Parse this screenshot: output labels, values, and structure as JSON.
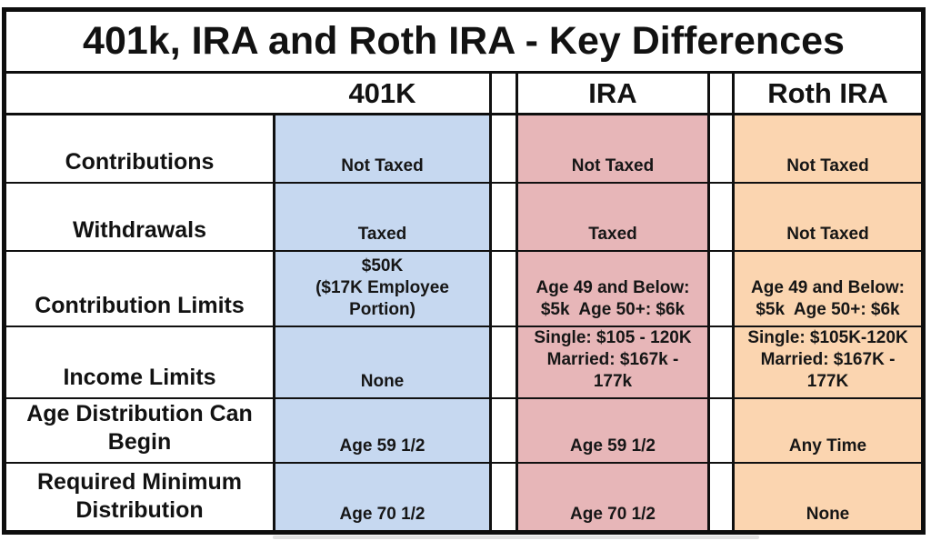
{
  "chart_data": {
    "type": "table",
    "title": "401k, IRA and Roth IRA - Key Differences",
    "columns": [
      "401K",
      "IRA",
      "Roth IRA"
    ],
    "row_labels": [
      "Contributions",
      "Withdrawals",
      "Contribution Limits",
      "Income Limits",
      "Age Distribution Can Begin",
      "Required Minimum Distribution"
    ],
    "rows": [
      {
        "label": "Contributions",
        "values": [
          "Not Taxed",
          "Not Taxed",
          "Not Taxed"
        ]
      },
      {
        "label": "Withdrawals",
        "values": [
          "Taxed",
          "Taxed",
          "Not Taxed"
        ]
      },
      {
        "label": "Contribution Limits",
        "values": [
          "$50K\n($17K Employee\nPortion)",
          "Age 49 and Below:\n$5k  Age 50+: $6k",
          "Age 49 and Below:\n$5k  Age 50+: $6k"
        ]
      },
      {
        "label": "Income Limits",
        "values": [
          "None",
          "Single: $105 - 120K\nMarried: $167k -\n177k",
          "Single: $105K-120K\nMarried: $167K -\n177K"
        ]
      },
      {
        "label": "Age Distribution Can Begin",
        "values": [
          "Age 59 1/2",
          "Age 59 1/2",
          "Any Time"
        ]
      },
      {
        "label": "Required Minimum Distribution",
        "values": [
          "Age 70 1/2",
          "Age 70 1/2",
          "None"
        ]
      }
    ],
    "legend": "none",
    "grid": "on"
  },
  "colors": {
    "fill_401k": "#c6d8f0",
    "fill_ira": "#e7b6b8",
    "fill_roth": "#fbd5b0",
    "border": "#0e0e0e",
    "text": "#121212",
    "background": "#ffffff"
  }
}
